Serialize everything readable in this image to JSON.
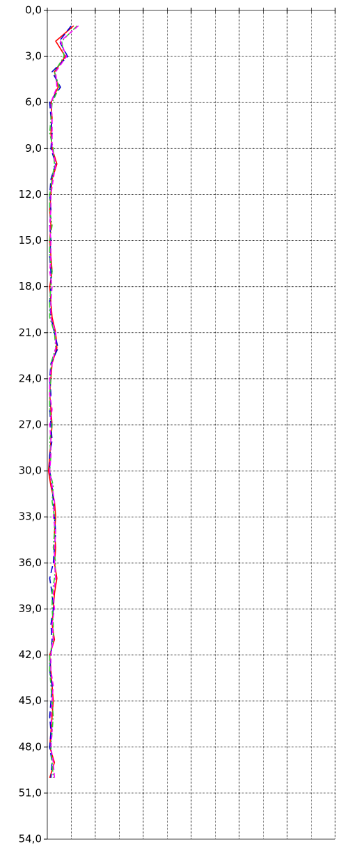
{
  "chart_data": {
    "type": "line",
    "orientation": "vertical",
    "ylim": [
      0,
      54
    ],
    "yticks": [
      {
        "value": 0,
        "label": "0,0"
      },
      {
        "value": 3,
        "label": "3,0"
      },
      {
        "value": 6,
        "label": "6,0"
      },
      {
        "value": 9,
        "label": "9,0"
      },
      {
        "value": 12,
        "label": "12,0"
      },
      {
        "value": 15,
        "label": "15,0"
      },
      {
        "value": 18,
        "label": "18,0"
      },
      {
        "value": 21,
        "label": "21,0"
      },
      {
        "value": 24,
        "label": "24,0"
      },
      {
        "value": 27,
        "label": "27,0"
      },
      {
        "value": 30,
        "label": "30,0"
      },
      {
        "value": 33,
        "label": "33,0"
      },
      {
        "value": 36,
        "label": "36,0"
      },
      {
        "value": 39,
        "label": "39,0"
      },
      {
        "value": 42,
        "label": "42,0"
      },
      {
        "value": 45,
        "label": "45,0"
      },
      {
        "value": 48,
        "label": "48,0"
      },
      {
        "value": 51,
        "label": "51,0"
      },
      {
        "value": 54,
        "label": "54,0"
      }
    ],
    "xlim": [
      0,
      12
    ],
    "xticks": [
      0,
      1,
      2,
      3,
      4,
      5,
      6,
      7,
      8,
      9,
      10,
      11,
      12
    ],
    "grid": true,
    "y": [
      1,
      2,
      3,
      4,
      5,
      6,
      7,
      8,
      9,
      10,
      11,
      12,
      13,
      14,
      15,
      16,
      17,
      18,
      19,
      20,
      21,
      22,
      23,
      24,
      25,
      26,
      27,
      28,
      29,
      30,
      31,
      32,
      33,
      34,
      35,
      36,
      37,
      38,
      39,
      40,
      41,
      42,
      43,
      44,
      45,
      46,
      47,
      48,
      49,
      50
    ],
    "series": [
      {
        "color": "#ff0000",
        "dash": "none",
        "values": [
          1.1,
          0.35,
          0.75,
          0.3,
          0.45,
          0.15,
          0.2,
          0.15,
          0.2,
          0.4,
          0.2,
          0.15,
          0.1,
          0.15,
          0.1,
          0.15,
          0.2,
          0.1,
          0.15,
          0.2,
          0.35,
          0.4,
          0.2,
          0.15,
          0.1,
          0.15,
          0.2,
          0.15,
          0.1,
          0.05,
          0.15,
          0.3,
          0.35,
          0.3,
          0.35,
          0.3,
          0.4,
          0.3,
          0.25,
          0.2,
          0.3,
          0.1,
          0.15,
          0.2,
          0.25,
          0.2,
          0.15,
          0.1,
          0.3,
          0.1
        ]
      },
      {
        "color": "#0000cc",
        "dash": "10,5",
        "values": [
          1.0,
          0.5,
          0.85,
          0.2,
          0.55,
          0.1,
          0.15,
          0.2,
          0.15,
          0.35,
          0.15,
          0.1,
          0.15,
          0.1,
          0.15,
          0.1,
          0.15,
          0.15,
          0.1,
          0.15,
          0.3,
          0.45,
          0.15,
          0.1,
          0.15,
          0.1,
          0.15,
          0.2,
          0.1,
          0.1,
          0.2,
          0.25,
          0.3,
          0.35,
          0.3,
          0.25,
          0.1,
          0.2,
          0.25,
          0.15,
          0.2,
          0.15,
          0.1,
          0.2,
          0.15,
          0.1,
          0.15,
          0.1,
          0.2,
          0.15
        ]
      },
      {
        "color": "#33cc33",
        "dash": "8,3,2,3",
        "values": [
          1.25,
          0.6,
          0.7,
          0.3,
          0.5,
          0.2,
          0.15,
          0.1,
          0.25,
          0.3,
          0.2,
          0.1,
          0.1,
          0.2,
          0.1,
          0.1,
          0.2,
          0.15,
          0.1,
          0.1,
          0.3,
          0.35,
          0.15,
          0.15,
          0.1,
          0.1,
          0.2,
          0.1,
          0.15,
          0.1,
          0.25,
          0.2,
          0.3,
          0.3,
          0.25,
          0.35,
          0.3,
          0.2,
          0.2,
          0.25,
          0.25,
          0.1,
          0.1,
          0.15,
          0.2,
          0.25,
          0.2,
          0.15,
          0.2,
          0.25
        ]
      },
      {
        "color": "#ff00ff",
        "dash": "7,4",
        "values": [
          1.3,
          0.55,
          0.8,
          0.35,
          0.4,
          0.15,
          0.2,
          0.2,
          0.2,
          0.35,
          0.25,
          0.15,
          0.15,
          0.1,
          0.15,
          0.15,
          0.1,
          0.2,
          0.15,
          0.15,
          0.35,
          0.35,
          0.2,
          0.1,
          0.1,
          0.2,
          0.1,
          0.15,
          0.15,
          0.1,
          0.2,
          0.3,
          0.25,
          0.35,
          0.3,
          0.3,
          0.35,
          0.25,
          0.3,
          0.2,
          0.25,
          0.15,
          0.15,
          0.25,
          0.2,
          0.15,
          0.2,
          0.15,
          0.25,
          0.3
        ]
      }
    ]
  }
}
